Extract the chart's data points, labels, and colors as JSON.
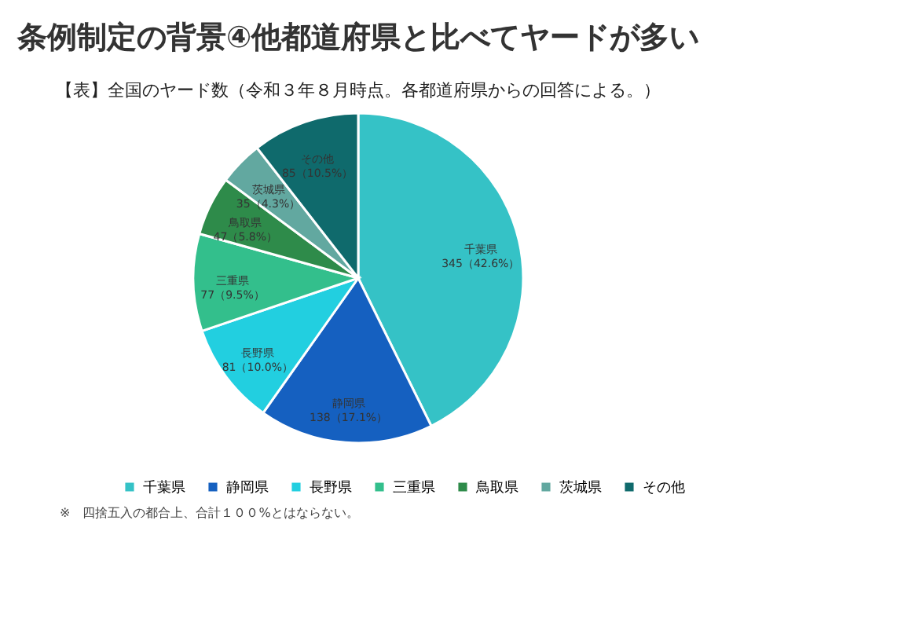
{
  "chart_data": {
    "type": "pie",
    "title": "条例制定の背景④他都道府県と比べてヤードが多い",
    "subtitle": "【表】全国のヤード数（令和３年８月時点。各都道府県からの回答による。）",
    "categories": [
      "千葉県",
      "静岡県",
      "長野県",
      "三重県",
      "鳥取県",
      "茨城県",
      "その他"
    ],
    "values": [
      345,
      138,
      81,
      77,
      47,
      35,
      85
    ],
    "value_labels": [
      "345（42.6%）",
      "138（17.1%）",
      "81（10.0%）",
      "77（9.5%）",
      "47（5.8%）",
      "35（4.3%）",
      "85（10.5%）"
    ],
    "colors": [
      "#35c2c6",
      "#1560c0",
      "#22cfe0",
      "#33bf8c",
      "#2e8b4a",
      "#62a8a0",
      "#0f6a6c"
    ],
    "legend": "bottom",
    "annotations": [
      "※　四捨五入の都合上、合計１００%とはならない。"
    ]
  }
}
